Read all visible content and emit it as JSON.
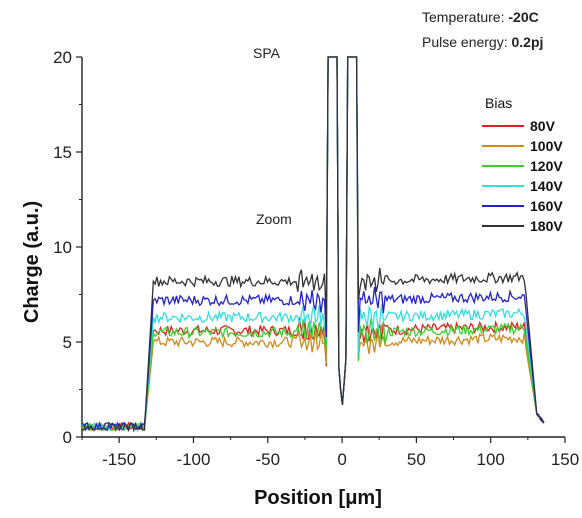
{
  "chart_data": {
    "type": "line",
    "xlabel": "Position [μm]",
    "ylabel": "Charge (a.u.)",
    "xlim": [
      -175,
      150
    ],
    "ylim": [
      0,
      20
    ],
    "xticks": [
      -150,
      -100,
      -50,
      0,
      50,
      100,
      150
    ],
    "yticks": [
      0,
      5,
      10,
      15,
      20
    ],
    "grid": false,
    "annotations": {
      "spa": "SPA",
      "zoom": "Zoom",
      "temperature_label": "Temperature: ",
      "temperature_value": "-20C",
      "pulse_label": "Pulse energy: ",
      "pulse_value": "0.2pj"
    },
    "legend": {
      "title": "Bias",
      "placement": "right"
    },
    "series": [
      {
        "name": "80V",
        "color": "#e02020",
        "plateau": 5.6,
        "spike": 20.0
      },
      {
        "name": "100V",
        "color": "#d08a1a",
        "plateau": 5.0,
        "spike": 20.0
      },
      {
        "name": "120V",
        "color": "#3ccf2e",
        "plateau": 5.5,
        "spike": 20.0
      },
      {
        "name": "140V",
        "color": "#33e0e0",
        "plateau": 6.3,
        "spike": 20.0
      },
      {
        "name": "160V",
        "color": "#2222cc",
        "plateau": 7.2,
        "spike": 20.0
      },
      {
        "name": "180V",
        "color": "#333333",
        "plateau": 8.2,
        "spike": 20.0
      }
    ],
    "profile_edges": {
      "left_rise": -130,
      "right_fall": 125,
      "center_gap": [
        -8,
        8
      ]
    }
  }
}
